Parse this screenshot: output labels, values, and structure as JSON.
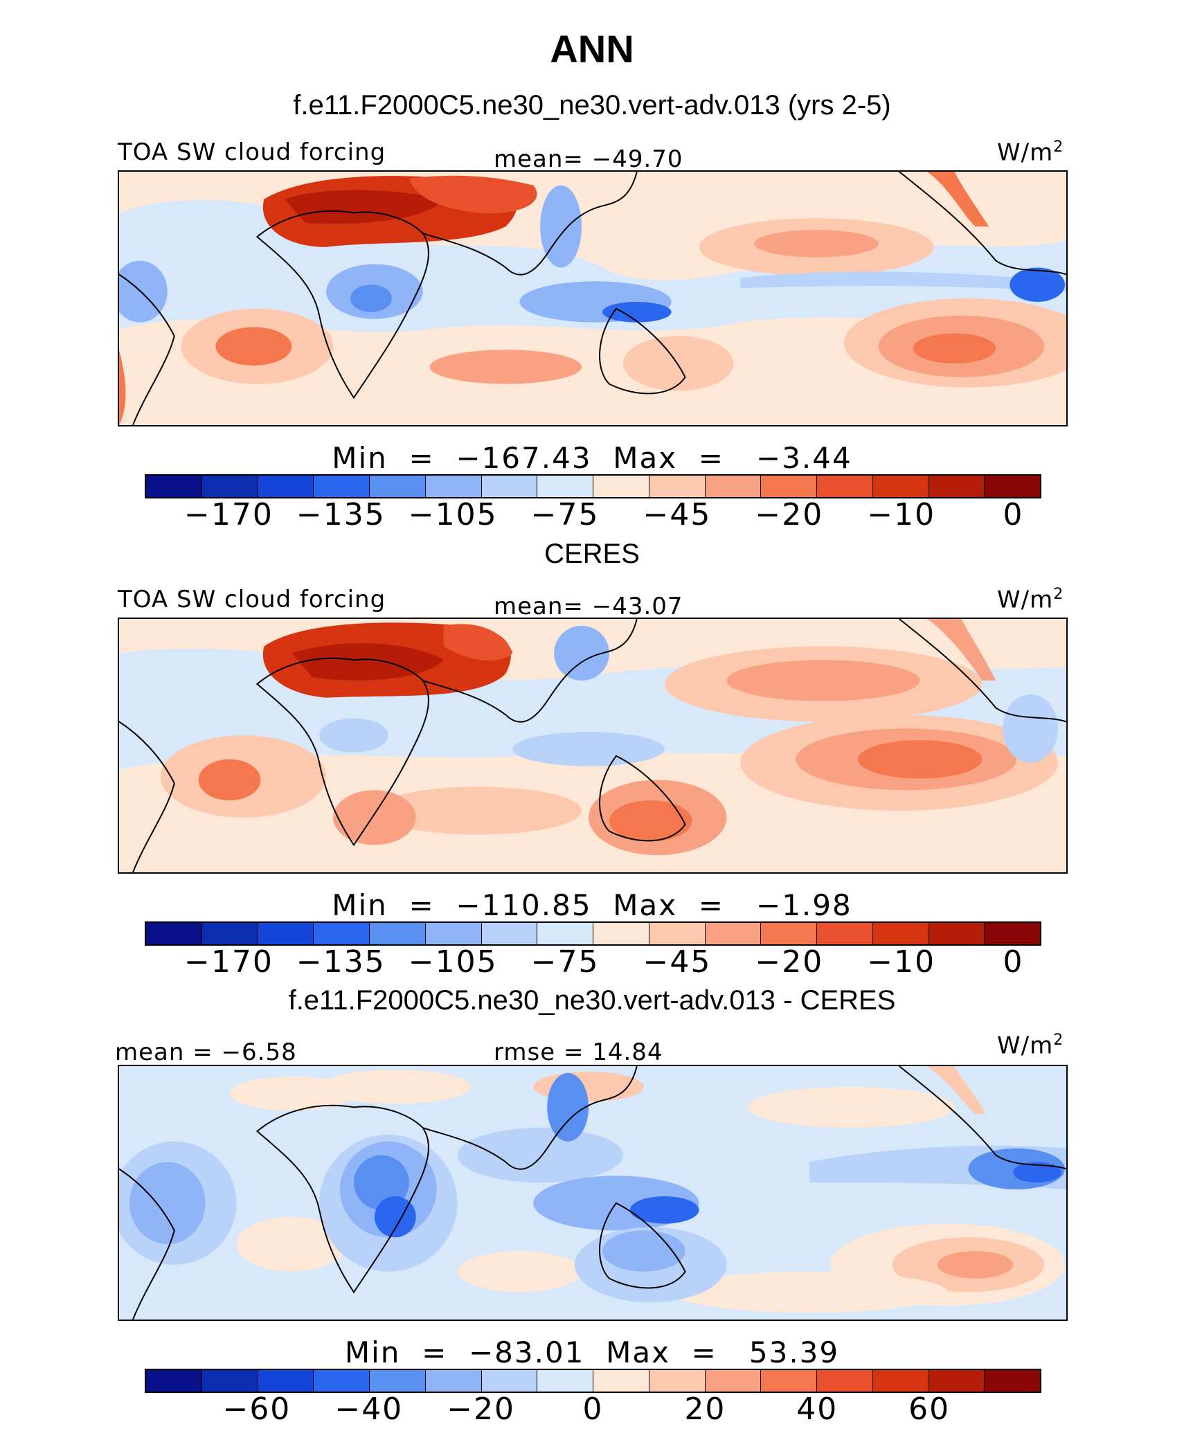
{
  "title": "ANN",
  "colors": {
    "palette": [
      "#08108a",
      "#0b2fb0",
      "#1346d8",
      "#2a66ee",
      "#5a8ff2",
      "#8fb4f7",
      "#b9d2fa",
      "#d8e8fb",
      "#fde8d8",
      "#fcc9ae",
      "#f9a283",
      "#f4774e",
      "#e9502c",
      "#d63411",
      "#b61d09",
      "#880705"
    ]
  },
  "panels": [
    {
      "heading": "f.e11.F2000C5.ne30_ne30.vert-adv.013 (yrs 2-5)",
      "left_label": "TOA SW cloud forcing",
      "center_label": "mean= −49.70",
      "unit": "W/m",
      "unit_sup": "2",
      "minmax": "Min  =  −167.43  Max  =   −3.44",
      "ticks": [
        "−170",
        "−135",
        "−105",
        "−75",
        "−45",
        "−20",
        "−10",
        "0"
      ],
      "field": {
        "mean": -49.7,
        "min": -167.43,
        "max": -3.44
      }
    },
    {
      "heading": "CERES",
      "left_label": "TOA SW cloud forcing",
      "center_label": "mean= −43.07",
      "unit": "W/m",
      "unit_sup": "2",
      "minmax": "Min  =  −110.85  Max  =   −1.98",
      "ticks": [
        "−170",
        "−135",
        "−105",
        "−75",
        "−45",
        "−20",
        "−10",
        "0"
      ],
      "field": {
        "mean": -43.07,
        "min": -110.85,
        "max": -1.98
      }
    },
    {
      "heading": "f.e11.F2000C5.ne30_ne30.vert-adv.013 - CERES",
      "left_label": "mean =   −6.58",
      "center_label": "rmse =   14.84",
      "unit": "W/m",
      "unit_sup": "2",
      "minmax": "Min  =  −83.01  Max  =   53.39",
      "ticks": [
        "−60",
        "−40",
        "−20",
        "0",
        "20",
        "40",
        "60"
      ],
      "field": {
        "mean": -6.58,
        "rmse": 14.84,
        "min": -83.01,
        "max": 53.39
      }
    }
  ]
}
